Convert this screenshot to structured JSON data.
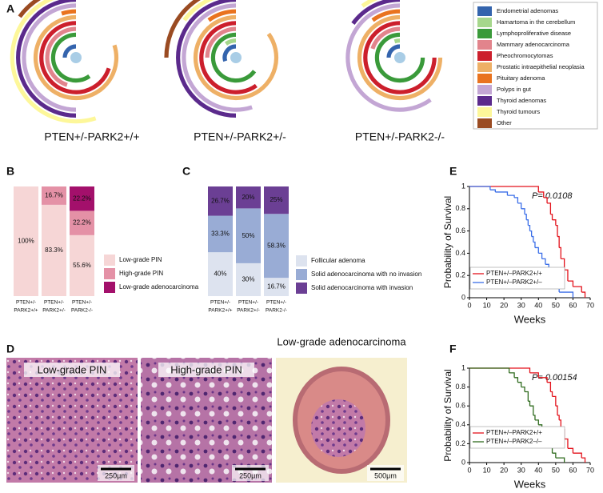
{
  "chart_data": [
    {
      "type": "radial-bar",
      "panel": "A",
      "categories": [
        "Endometrial adenomas",
        "Hamartoma in the cerebellum",
        "Lymphoproliferative disease",
        "Mammary adenocarcinoma",
        "Pheochromocytomas",
        "Prostatic intraepithelial neoplasia",
        "Pituitary adenoma",
        "Polyps in gut",
        "Thyroid adenomas",
        "Thyroid tumours",
        "Other"
      ],
      "colors": [
        "#3464ad",
        "#a6d78c",
        "#3a9a3a",
        "#e2848c",
        "#cc1f2c",
        "#eeb066",
        "#e9731f",
        "#c3a6d4",
        "#5b2a8c",
        "#fdf79a",
        "#9a4b22"
      ],
      "series": [
        {
          "name": "PTEN+/-PARK2+/+",
          "values": [
            25,
            0,
            60,
            45,
            70,
            80,
            5,
            50,
            50,
            55,
            15
          ]
        },
        {
          "name": "PTEN+/-PARK2+/-",
          "values": [
            30,
            10,
            65,
            25,
            60,
            85,
            10,
            55,
            50,
            15,
            25
          ]
        },
        {
          "name": "PTEN+/-PARK2-/-",
          "values": [
            25,
            5,
            75,
            20,
            75,
            75,
            10,
            60,
            15,
            10,
            5
          ]
        }
      ]
    },
    {
      "type": "stacked-bar",
      "panel": "B",
      "categories": [
        [
          "PTEN+/-",
          "PARK2+/+"
        ],
        [
          "PTEN+/-",
          "PARK2+/-"
        ],
        [
          "PTEN+/-",
          "PARK2-/-"
        ]
      ],
      "series": [
        {
          "name": "Low-grade PIN",
          "color": "#f6d6d6",
          "values": [
            100,
            83.3,
            55.6
          ],
          "value_labels": [
            "100%",
            "83.3%",
            "55.6%"
          ]
        },
        {
          "name": "High-grade PIN",
          "color": "#e491a6",
          "values": [
            0,
            16.7,
            22.2
          ],
          "value_labels": [
            null,
            "16.7%",
            "22.2%"
          ]
        },
        {
          "name": "Low-grade adenocarcinoma",
          "color": "#a3106b",
          "values": [
            0,
            0,
            22.2
          ],
          "value_labels": [
            null,
            null,
            "22.2%"
          ]
        }
      ]
    },
    {
      "type": "stacked-bar",
      "panel": "C",
      "categories": [
        [
          "PTEN+/-",
          "PARK2+/+"
        ],
        [
          "PTEN+/-",
          "PARK2+/-"
        ],
        [
          "PTEN+/-",
          "PARK2-/-"
        ]
      ],
      "series": [
        {
          "name": "Follicular adenoma",
          "color": "#dde3ef",
          "values": [
            40,
            30,
            16.7
          ],
          "value_labels": [
            "40%",
            "30%",
            "16.7%"
          ]
        },
        {
          "name": "Solid adenocarcinoma with no invasion",
          "color": "#99acd5",
          "values": [
            33.3,
            50,
            58.3
          ],
          "value_labels": [
            "33.3%",
            "50%",
            "58.3%"
          ]
        },
        {
          "name": "Solid adenocarcinoma with invasion",
          "color": "#6b3f94",
          "values": [
            26.7,
            20,
            25
          ],
          "value_labels": [
            "26.7%",
            "20%",
            "25%"
          ]
        }
      ]
    },
    {
      "type": "step",
      "panel": "E",
      "xlabel": "Weeks",
      "ylabel": "Probability of Survival",
      "annotation": "P= 0.0108",
      "xlim": [
        0,
        70
      ],
      "xticks": [
        0,
        10,
        20,
        30,
        40,
        50,
        60,
        70
      ],
      "ylim": [
        0,
        1
      ],
      "yticks": [
        0,
        0.2,
        0.4,
        0.6,
        0.8,
        1
      ],
      "series": [
        {
          "name": "PTEN+/–PARK2+/+",
          "color": "#e3121b",
          "x": [
            0,
            40,
            43,
            45,
            47,
            48,
            50,
            51,
            52,
            53,
            55,
            57,
            60,
            65,
            67
          ],
          "values": [
            1,
            0.95,
            0.9,
            0.85,
            0.75,
            0.7,
            0.65,
            0.55,
            0.45,
            0.35,
            0.25,
            0.15,
            0.1,
            0.05,
            0
          ]
        },
        {
          "name": "PTEN+/–PARK2+/–",
          "color": "#3a6ee8",
          "x": [
            0,
            12,
            15,
            22,
            26,
            28,
            30,
            32,
            33,
            34,
            35,
            36,
            37,
            38,
            40,
            42,
            44,
            46,
            48,
            50,
            52,
            60
          ],
          "values": [
            1,
            0.97,
            0.95,
            0.92,
            0.9,
            0.85,
            0.8,
            0.75,
            0.7,
            0.65,
            0.6,
            0.55,
            0.5,
            0.45,
            0.4,
            0.35,
            0.3,
            0.2,
            0.15,
            0.1,
            0.05,
            0
          ]
        }
      ]
    },
    {
      "type": "step",
      "panel": "F",
      "xlabel": "Weeks",
      "ylabel": "Probability of Survival",
      "annotation": "P= 0.00154",
      "xlim": [
        0,
        70
      ],
      "xticks": [
        0,
        10,
        20,
        30,
        40,
        50,
        60,
        70
      ],
      "ylim": [
        0,
        1
      ],
      "yticks": [
        0,
        0.2,
        0.4,
        0.6,
        0.8,
        1
      ],
      "series": [
        {
          "name": "PTEN+/–PARK2+/+",
          "color": "#e3121b",
          "x": [
            0,
            35,
            40,
            45,
            47,
            48,
            50,
            51,
            52,
            53,
            55,
            57,
            60,
            65,
            67
          ],
          "values": [
            1,
            0.95,
            0.9,
            0.85,
            0.75,
            0.7,
            0.6,
            0.5,
            0.45,
            0.35,
            0.25,
            0.15,
            0.1,
            0.05,
            0
          ]
        },
        {
          "name": "PTEN+/–PARK2–/–",
          "color": "#2f6b1e",
          "x": [
            0,
            23,
            26,
            28,
            30,
            32,
            34,
            35,
            37,
            38,
            40,
            42,
            44,
            46,
            48,
            50,
            55
          ],
          "values": [
            1,
            0.95,
            0.9,
            0.85,
            0.8,
            0.75,
            0.65,
            0.6,
            0.5,
            0.45,
            0.4,
            0.3,
            0.25,
            0.2,
            0.1,
            0.05,
            0
          ]
        }
      ]
    }
  ],
  "micrographs": {
    "panel": "D",
    "images": [
      {
        "label": "Low-grade PIN",
        "scale_bar": "250μm"
      },
      {
        "label": "High-grade PIN",
        "scale_bar": "250μm"
      },
      {
        "label": "Low-grade adenocarcinoma",
        "scale_bar": "500μm"
      }
    ]
  }
}
